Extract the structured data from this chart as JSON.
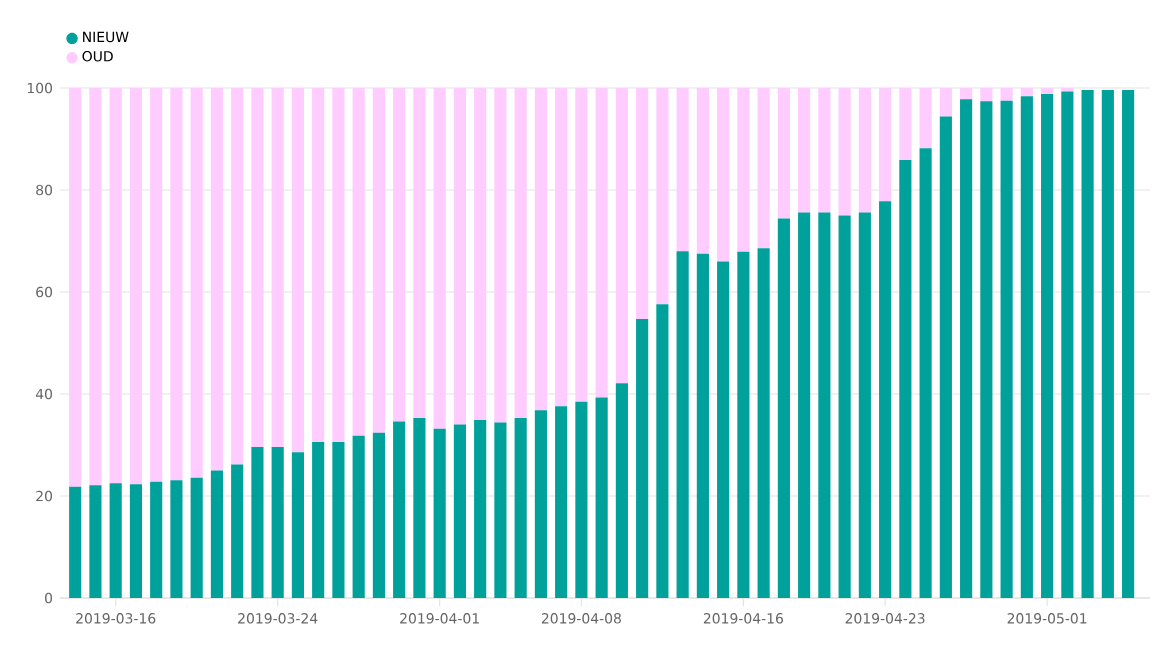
{
  "chart_data": {
    "type": "bar",
    "stacked": true,
    "legend": "top left",
    "grid": "y",
    "x": [
      "2019-03-14",
      "2019-03-15",
      "2019-03-16",
      "2019-03-17",
      "2019-03-18",
      "2019-03-19",
      "2019-03-20",
      "2019-03-21",
      "2019-03-22",
      "2019-03-23",
      "2019-03-24",
      "2019-03-25",
      "2019-03-26",
      "2019-03-27",
      "2019-03-28",
      "2019-03-29",
      "2019-03-30",
      "2019-03-31",
      "2019-04-01",
      "2019-04-02",
      "2019-04-03",
      "2019-04-04",
      "2019-04-05",
      "2019-04-06",
      "2019-04-07",
      "2019-04-08",
      "2019-04-09",
      "2019-04-10",
      "2019-04-11",
      "2019-04-12",
      "2019-04-13",
      "2019-04-14",
      "2019-04-15",
      "2019-04-16",
      "2019-04-17",
      "2019-04-18",
      "2019-04-19",
      "2019-04-20",
      "2019-04-21",
      "2019-04-22",
      "2019-04-23",
      "2019-04-24",
      "2019-04-25",
      "2019-04-26",
      "2019-04-27",
      "2019-04-28",
      "2019-04-29",
      "2019-04-30",
      "2019-05-01",
      "2019-05-02",
      "2019-05-03",
      "2019-05-04",
      "2019-05-05"
    ],
    "series": [
      {
        "name": "NIEUW",
        "color": "#00a19a",
        "values": [
          21.8,
          22.1,
          22.5,
          22.3,
          22.8,
          23.1,
          23.6,
          25.0,
          26.2,
          29.6,
          29.6,
          28.6,
          30.6,
          30.6,
          31.8,
          32.4,
          34.6,
          35.3,
          33.2,
          34.0,
          34.9,
          34.4,
          35.3,
          36.8,
          37.6,
          38.5,
          39.3,
          42.1,
          54.7,
          57.6,
          68.0,
          67.5,
          66.0,
          67.9,
          68.6,
          74.4,
          75.6,
          75.6,
          75.0,
          75.6,
          77.8,
          85.9,
          88.2,
          94.4,
          97.8,
          97.4,
          97.5,
          98.4,
          98.8,
          99.3,
          99.6,
          99.6,
          99.6
        ]
      },
      {
        "name": "OUD",
        "color": "#ffccff",
        "values": [
          78.2,
          77.9,
          77.5,
          77.7,
          77.2,
          76.9,
          76.4,
          75.0,
          73.8,
          70.4,
          70.4,
          71.4,
          69.4,
          69.4,
          68.2,
          67.6,
          65.4,
          64.7,
          66.8,
          66.0,
          65.1,
          65.6,
          64.7,
          63.2,
          62.4,
          61.5,
          60.7,
          57.9,
          45.3,
          42.4,
          32.0,
          32.5,
          34.0,
          32.1,
          31.4,
          25.6,
          24.4,
          24.4,
          25.0,
          24.4,
          22.2,
          14.1,
          11.8,
          5.6,
          2.2,
          2.6,
          2.5,
          1.6,
          1.2,
          0.7,
          null,
          null,
          null
        ]
      }
    ],
    "xlim": [
      "2019-03-13T06:00",
      "2019-05-06T02:00"
    ],
    "xticks": [
      {
        "value": "2019-03-16",
        "label": "2019-03-16"
      },
      {
        "value": "2019-03-24",
        "label": "2019-03-24"
      },
      {
        "value": "2019-04-01",
        "label": "2019-04-01"
      },
      {
        "value": "2019-04-08",
        "label": "2019-04-08"
      },
      {
        "value": "2019-04-16",
        "label": "2019-04-16"
      },
      {
        "value": "2019-04-23",
        "label": "2019-04-23"
      },
      {
        "value": "2019-05-01",
        "label": "2019-05-01"
      }
    ],
    "ylim": [
      0,
      100
    ],
    "yticks": [
      0,
      20,
      40,
      60,
      80,
      100
    ]
  }
}
